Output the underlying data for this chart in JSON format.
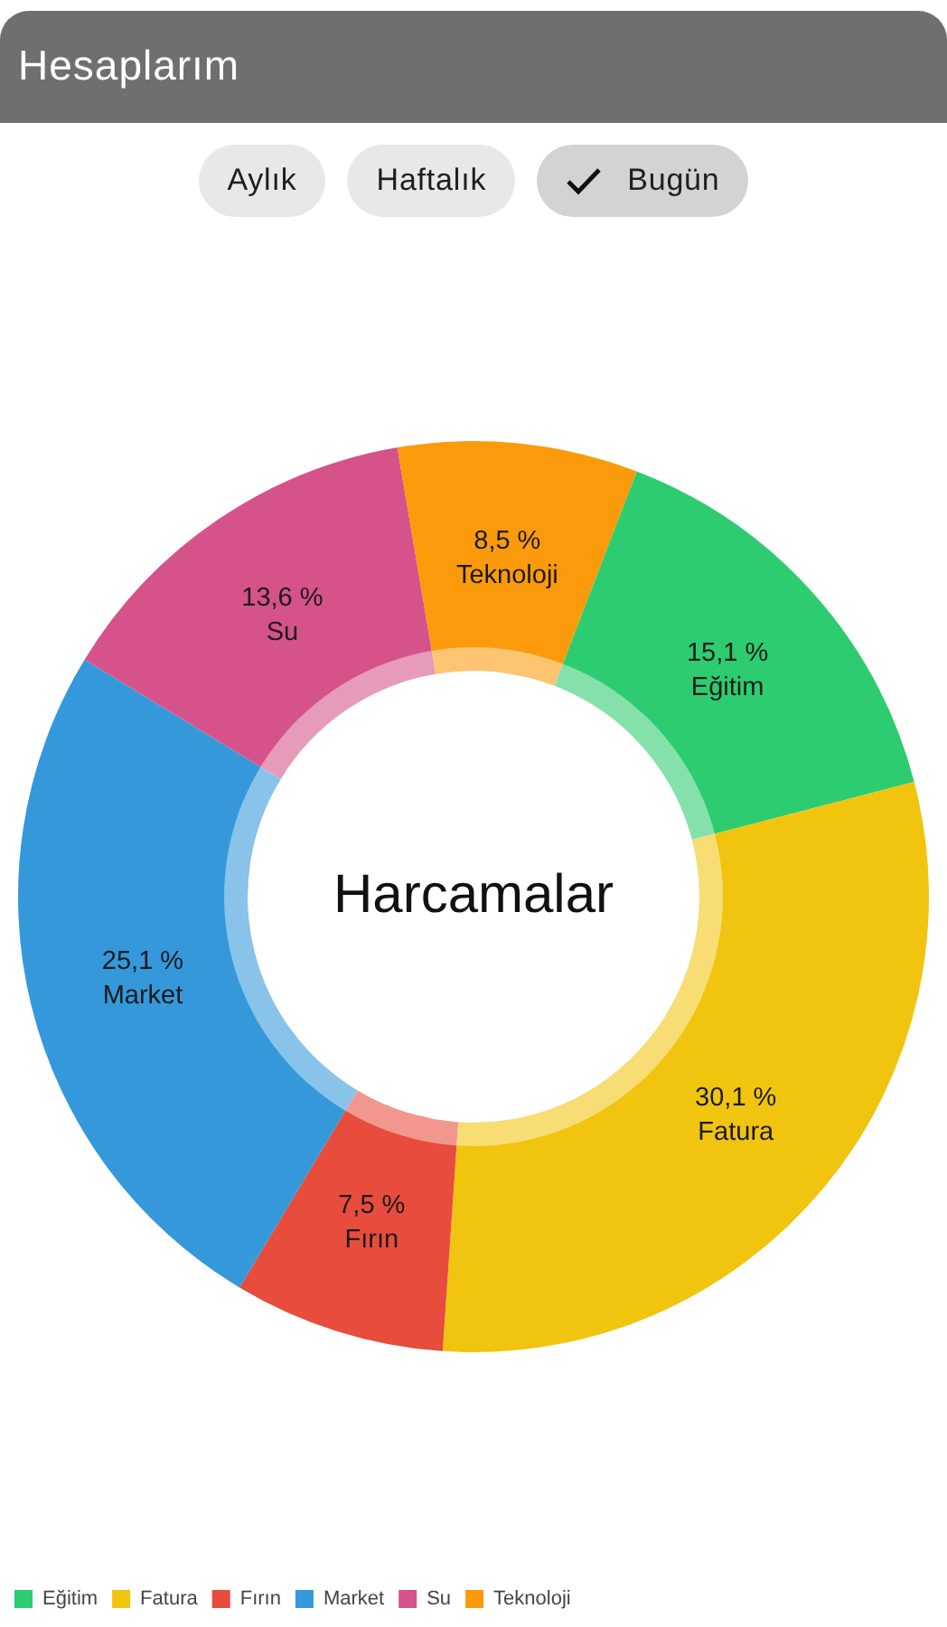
{
  "chart_data": {
    "type": "donut",
    "title": "Harcamalar",
    "categories": [
      "Eğitim",
      "Fatura",
      "Fırın",
      "Market",
      "Su",
      "Teknoloji"
    ],
    "values": [
      15.1,
      30.1,
      7.5,
      25.1,
      13.6,
      8.5
    ],
    "colors": [
      "#2ecc71",
      "#f1c40f",
      "#e74c3c",
      "#3498db",
      "#d5538a",
      "#fb9a0b"
    ],
    "value_labels": [
      "15,1 %",
      "30,1 %",
      "7,5 %",
      "25,1 %",
      "13,6 %",
      "8,5 %"
    ],
    "legend": "bottom left",
    "annotations": [
      "Hesaplarım",
      "Aylık",
      "Haftalık",
      "Bugün"
    ]
  }
}
